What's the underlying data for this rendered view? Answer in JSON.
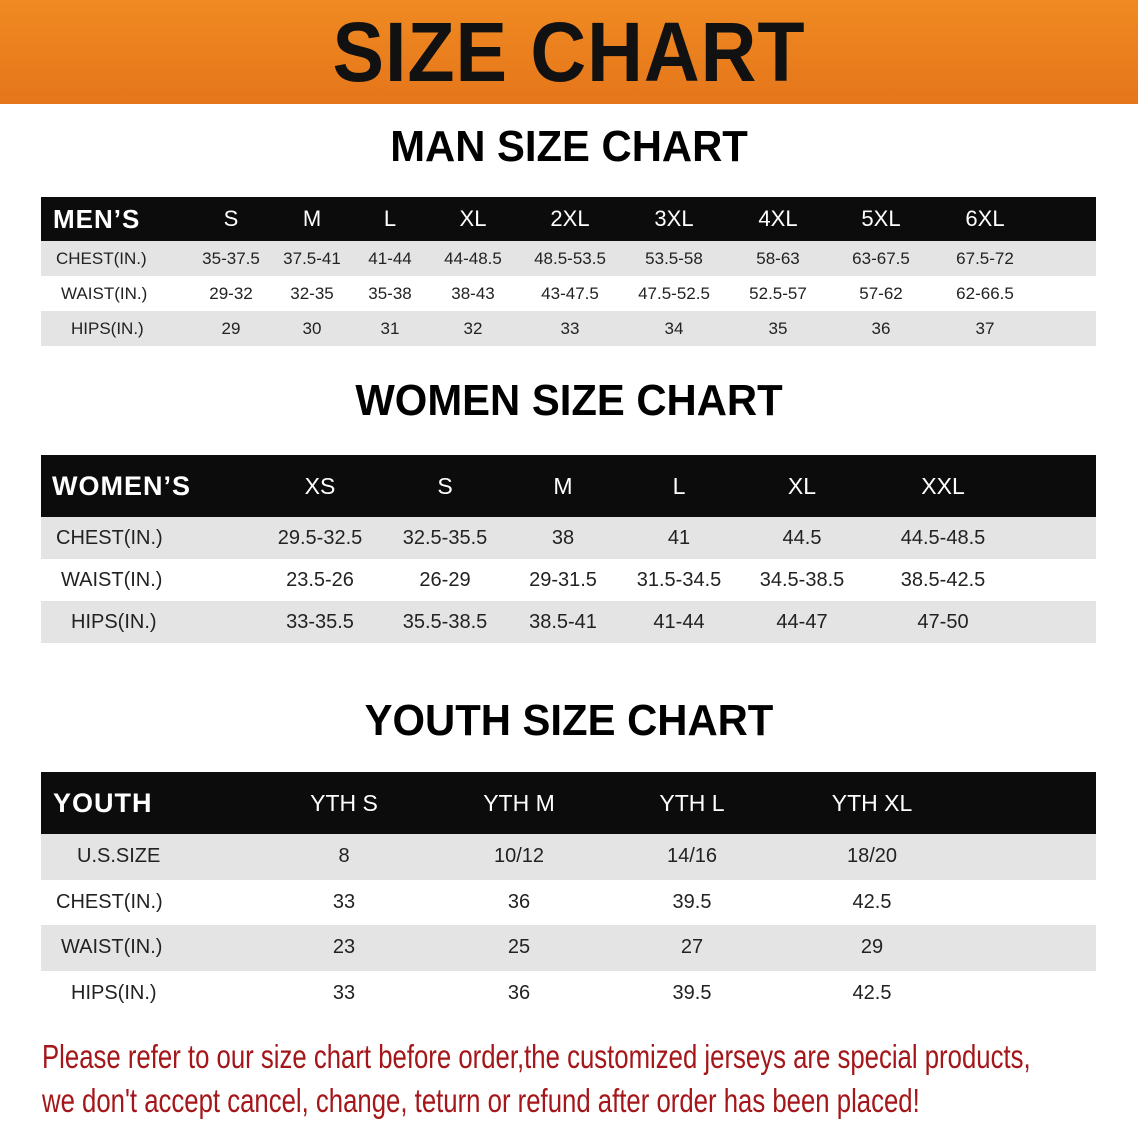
{
  "banner": {
    "title": "SIZE CHART",
    "color": "#e8781a"
  },
  "men": {
    "title": "MAN SIZE CHART",
    "header": [
      "MEN’S",
      "S",
      "M",
      "L",
      "XL",
      "2XL",
      "3XL",
      "4XL",
      "5XL",
      "6XL"
    ],
    "rows": [
      [
        "CHEST(IN.)",
        "35-37.5",
        "37.5-41",
        "41-44",
        "44-48.5",
        "48.5-53.5",
        "53.5-58",
        "58-63",
        "63-67.5",
        "67.5-72"
      ],
      [
        "WAIST(IN.)",
        "29-32",
        "32-35",
        "35-38",
        "38-43",
        "43-47.5",
        "47.5-52.5",
        "52.5-57",
        "57-62",
        "62-66.5"
      ],
      [
        "HIPS(IN.)",
        "29",
        "30",
        "31",
        "32",
        "33",
        "34",
        "35",
        "36",
        "37"
      ]
    ]
  },
  "women": {
    "title": "WOMEN SIZE CHART",
    "header": [
      "WOMEN’S",
      "XS",
      "S",
      "M",
      "L",
      "XL",
      "XXL"
    ],
    "rows": [
      [
        "CHEST(IN.)",
        "29.5-32.5",
        "32.5-35.5",
        "38",
        "41",
        "44.5",
        "44.5-48.5"
      ],
      [
        "WAIST(IN.)",
        "23.5-26",
        "26-29",
        "29-31.5",
        "31.5-34.5",
        "34.5-38.5",
        "38.5-42.5"
      ],
      [
        "HIPS(IN.)",
        "33-35.5",
        "35.5-38.5",
        "38.5-41",
        "41-44",
        "44-47",
        "47-50"
      ]
    ]
  },
  "youth": {
    "title": "YOUTH SIZE CHART",
    "header": [
      "YOUTH",
      "YTH S",
      "YTH M",
      "YTH L",
      "YTH XL"
    ],
    "rows": [
      [
        "U.S.SIZE",
        "8",
        "10/12",
        "14/16",
        "18/20"
      ],
      [
        "CHEST(IN.)",
        "33",
        "36",
        "39.5",
        "42.5"
      ],
      [
        "WAIST(IN.)",
        "23",
        "25",
        "27",
        "29"
      ],
      [
        "HIPS(IN.)",
        "33",
        "36",
        "39.5",
        "42.5"
      ]
    ]
  },
  "notice": {
    "line1": "Please refer to our size chart before order,the customized jerseys are special products,",
    "line2": "we don't accept cancel, change, teturn or refund after order has been placed!",
    "color": "#a4161a"
  }
}
